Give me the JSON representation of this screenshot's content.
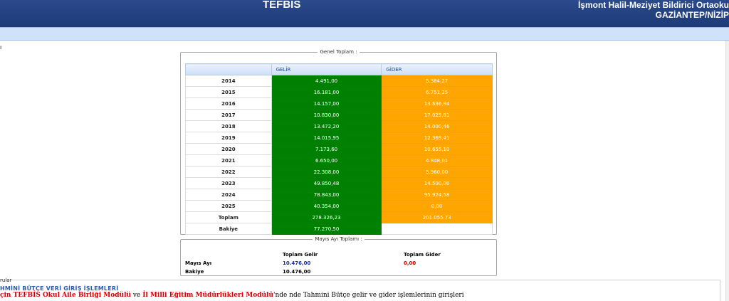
{
  "header": {
    "title": "TEFBİS",
    "school_name": "İşmont Halil-Meziyet Bildirici Ortaoku",
    "location": "GAZİANTEP/NİZİP"
  },
  "edge_char": "ı",
  "genel": {
    "legend": "Genel Toplam :",
    "col_gelir": "GELİR",
    "col_gider": "GİDER",
    "rows": [
      {
        "label": "2014",
        "gelir": "4.491,00",
        "gider": "5.384,27"
      },
      {
        "label": "2015",
        "gelir": "16.181,00",
        "gider": "6.751,25"
      },
      {
        "label": "2016",
        "gelir": "14.157,00",
        "gider": "13.636,84"
      },
      {
        "label": "2017",
        "gelir": "10.830,00",
        "gider": "17.025,81"
      },
      {
        "label": "2018",
        "gelir": "13.472,20",
        "gider": "14.000,46"
      },
      {
        "label": "2019",
        "gelir": "14.015,95",
        "gider": "12.369,41"
      },
      {
        "label": "2020",
        "gelir": "7.173,60",
        "gider": "10.655,10"
      },
      {
        "label": "2021",
        "gelir": "6.650,00",
        "gider": "4.848,01"
      },
      {
        "label": "2022",
        "gelir": "22.308,00",
        "gider": "5.960,00"
      },
      {
        "label": "2023",
        "gelir": "49.850,48",
        "gider": "14.500,00"
      },
      {
        "label": "2024",
        "gelir": "78.843,00",
        "gider": "95.924,58"
      },
      {
        "label": "2025",
        "gelir": "40.354,00",
        "gider": "0,00"
      },
      {
        "label": "Toplam",
        "gelir": "278.326,23",
        "gider": "201.055,73"
      }
    ],
    "bakiye_label": "Bakiye",
    "bakiye_value": "77.270,50"
  },
  "mayis": {
    "legend": "Mayıs Ayı Toplamı :",
    "toplam_gelir_label": "Toplam Gelir",
    "toplam_gider_label": "Toplam Gider",
    "ay_label": "Mayıs Ayı",
    "ay_gelir": "10.476,00",
    "ay_gider": "0,00",
    "bakiye_label": "Bakiye",
    "bakiye_value": "10.476,00"
  },
  "bottom": {
    "label": "rular",
    "heading": "HMİNİ BÜTÇE VERİ GİRİŞ İŞLEMLERİ",
    "text_part1": "çin TEFBİS Okul Aile Birliği Modülü",
    "text_part2": " ve ",
    "text_part3": "İl Milli Eğitim Müdürlükleri Modülü",
    "text_part4": "'nde nde Tahmini Bütçe gelir ve gider işlemlerinin girişleri"
  },
  "colors": {
    "header": "#22407f",
    "subbar": "#cfe1fb",
    "gelir_cell": "#008000",
    "gider_cell": "#ffa500",
    "value_blue": "#1a2ea8",
    "value_red": "#d40000"
  }
}
